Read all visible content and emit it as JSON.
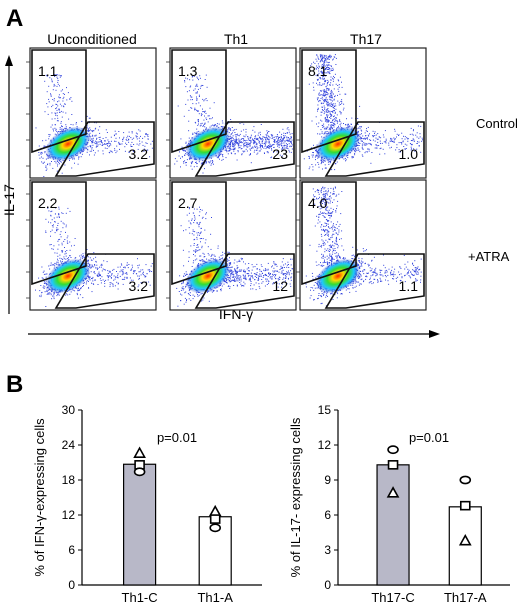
{
  "panel_a": {
    "letter": "A",
    "columns": [
      "Unconditioned",
      "Th1",
      "Th17"
    ],
    "rows": [
      "Control",
      "+ATRA"
    ],
    "y_axis_label": "IL-17",
    "x_axis_label": "IFN-γ",
    "plots": [
      {
        "row": 0,
        "col": 0,
        "il17_pct": "1.1",
        "ifng_pct": "3.2"
      },
      {
        "row": 0,
        "col": 1,
        "il17_pct": "1.3",
        "ifng_pct": "23"
      },
      {
        "row": 0,
        "col": 2,
        "il17_pct": "8.1",
        "ifng_pct": "1.0"
      },
      {
        "row": 1,
        "col": 0,
        "il17_pct": "2.2",
        "ifng_pct": "3.2"
      },
      {
        "row": 1,
        "col": 1,
        "il17_pct": "2.7",
        "ifng_pct": "12"
      },
      {
        "row": 1,
        "col": 2,
        "il17_pct": "4.0",
        "ifng_pct": "1.1"
      }
    ]
  },
  "panel_b": {
    "letter": "B"
  },
  "chart_data": [
    {
      "type": "bar",
      "categories": [
        "Th1-C",
        "Th1-A"
      ],
      "values": [
        20.7,
        11.7
      ],
      "points": [
        [
          22.6,
          20.6,
          19.4
        ],
        [
          12.6,
          11.3,
          9.8
        ]
      ],
      "point_markers": [
        "triangle",
        "square",
        "circle"
      ],
      "bar_colors": [
        "#b8b8c8",
        "#ffffff"
      ],
      "title": "",
      "annotation": "p=0.01",
      "xlabel": "",
      "ylabel": "% of IFN-γ-expressing cells",
      "ylim": [
        0,
        30
      ],
      "yticks": [
        "0",
        "6",
        "12",
        "18",
        "24",
        "30"
      ]
    },
    {
      "type": "bar",
      "categories": [
        "Th17-C",
        "Th17-A"
      ],
      "values": [
        10.3,
        6.7
      ],
      "points": [
        [
          11.6,
          10.3,
          7.9
        ],
        [
          9.0,
          6.8,
          3.8
        ]
      ],
      "point_markers": [
        "circle",
        "square",
        "triangle"
      ],
      "bar_colors": [
        "#b8b8c8",
        "#ffffff"
      ],
      "title": "",
      "annotation": "p=0.01",
      "xlabel": "",
      "ylabel": "% of IL-17- expressing cells",
      "ylim": [
        0,
        15
      ],
      "yticks": [
        "0",
        "3",
        "6",
        "9",
        "12",
        "15"
      ]
    }
  ]
}
